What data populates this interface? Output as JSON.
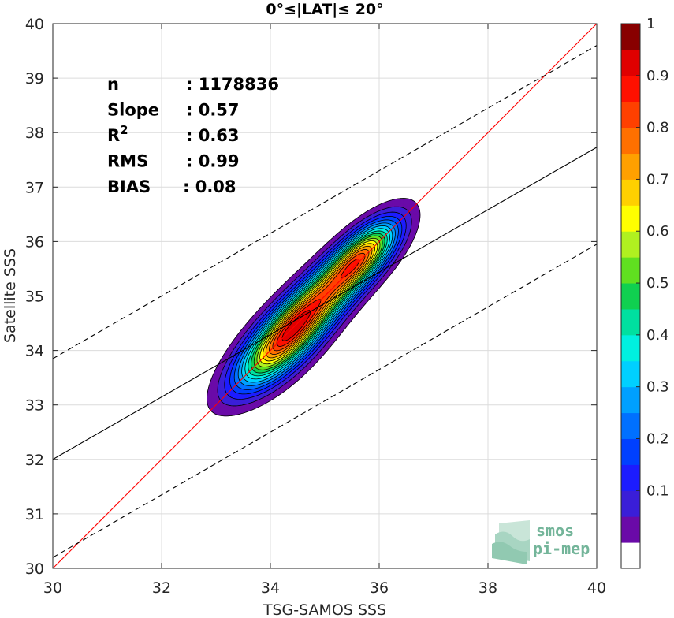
{
  "chart_data": {
    "type": "contour",
    "title": "0°≤|LAT|≤ 20°",
    "xlabel": "TSG-SAMOS SSS",
    "ylabel": "Satellite SSS",
    "xlim": [
      30,
      40
    ],
    "ylim": [
      30,
      40
    ],
    "xticks": [
      "30",
      "32",
      "34",
      "36",
      "38",
      "40"
    ],
    "yticks": [
      "30",
      "31",
      "32",
      "33",
      "34",
      "35",
      "36",
      "37",
      "38",
      "39",
      "40"
    ],
    "grid": true,
    "stats": [
      {
        "label": "n",
        "value": ": 1178836"
      },
      {
        "label": "Slope",
        "value": ": 0.57"
      },
      {
        "label": "R",
        "sup": "2",
        "value": ": 0.63"
      },
      {
        "label": "RMS",
        "value": ": 0.99"
      },
      {
        "label": "BIAS",
        "value": ": 0.08"
      }
    ],
    "lines": {
      "identity": {
        "color": "#ff0000",
        "from": [
          30,
          30
        ],
        "to": [
          40,
          40
        ]
      },
      "regression": {
        "color": "#000000",
        "from": [
          30,
          32.0
        ],
        "to": [
          40,
          37.73
        ]
      },
      "upper_bound": {
        "color": "#000000",
        "dashed": true,
        "from": [
          30,
          33.85
        ],
        "to": [
          40,
          39.6
        ]
      },
      "lower_bound": {
        "color": "#000000",
        "dashed": true,
        "from": [
          30,
          30.2
        ],
        "to": [
          40,
          35.95
        ]
      }
    },
    "density": {
      "peaks": [
        {
          "x": 34.75,
          "y": 34.78,
          "sigma_along": 1.05,
          "sigma_perp": 0.28,
          "weight": 1.0
        },
        {
          "x": 35.7,
          "y": 35.75,
          "sigma_along": 0.55,
          "sigma_perp": 0.24,
          "weight": 0.72
        },
        {
          "x": 34.2,
          "y": 34.05,
          "sigma_along": 0.7,
          "sigma_perp": 0.3,
          "weight": 0.55
        }
      ],
      "levels": [
        0.05,
        0.1,
        0.15,
        0.2,
        0.25,
        0.3,
        0.35,
        0.4,
        0.45,
        0.5,
        0.55,
        0.6,
        0.65,
        0.7,
        0.75,
        0.8,
        0.85,
        0.9,
        0.95
      ]
    },
    "colorbar": {
      "ticks": [
        "0.1",
        "0.2",
        "0.3",
        "0.4",
        "0.5",
        "0.6",
        "0.7",
        "0.8",
        "0.9",
        "1"
      ],
      "colors": [
        "#ffffff",
        "#6a0aa8",
        "#3a1ed8",
        "#1c1cff",
        "#0040ff",
        "#0070ff",
        "#00a0ff",
        "#00d0ff",
        "#00f0e0",
        "#00e0a0",
        "#10d050",
        "#60e020",
        "#b0f020",
        "#ffff00",
        "#ffd000",
        "#ffa000",
        "#ff7000",
        "#ff4000",
        "#ff1000",
        "#e00000",
        "#880000"
      ]
    }
  },
  "logo": {
    "line1": "smos",
    "line2": "pi-mep"
  }
}
